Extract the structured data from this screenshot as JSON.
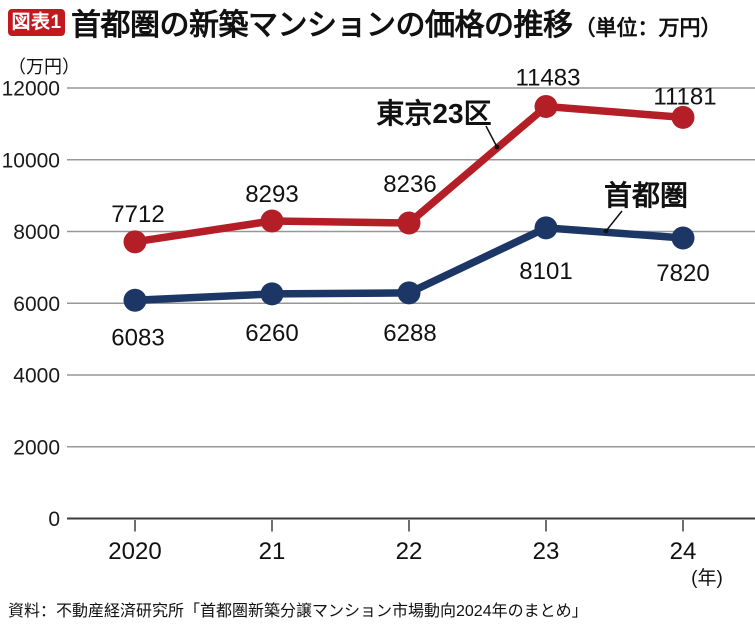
{
  "header": {
    "badge": "図表1",
    "title": "首都圏の新築マンションの価格の推移",
    "unit_note": "（単位：万円）"
  },
  "source": "資料：不動産経済研究所「首都圏新築分譲マンション市場動向2024年のまとめ」",
  "colors": {
    "badge_red": "#c3181e",
    "tokyo23_red": "#b41f27",
    "shutoken_navy": "#1c3766",
    "gridline_gray": "#979797",
    "axis_dark": "#3d3d3d"
  },
  "chart_data": {
    "type": "line",
    "title": "首都圏の新築マンションの価格の推移",
    "unit": "万円",
    "x": [
      2020,
      2021,
      2022,
      2023,
      2024
    ],
    "x_tick_labels": [
      "2020",
      "21",
      "22",
      "23",
      "24"
    ],
    "x_axis_unit": "(年)",
    "ylabel": "（万円）",
    "ylim": [
      0,
      12000
    ],
    "yticks": [
      0,
      2000,
      4000,
      6000,
      8000,
      10000,
      12000
    ],
    "grid": true,
    "legend_position": "inline-annotations",
    "series": [
      {
        "name": "東京23区",
        "color": "#b41f27",
        "values": [
          7712,
          8293,
          8236,
          11483,
          11181
        ],
        "label_pos": "above"
      },
      {
        "name": "首都圏",
        "color": "#1c3766",
        "values": [
          6083,
          6260,
          6288,
          8101,
          7820
        ],
        "label_pos": "below"
      }
    ]
  }
}
